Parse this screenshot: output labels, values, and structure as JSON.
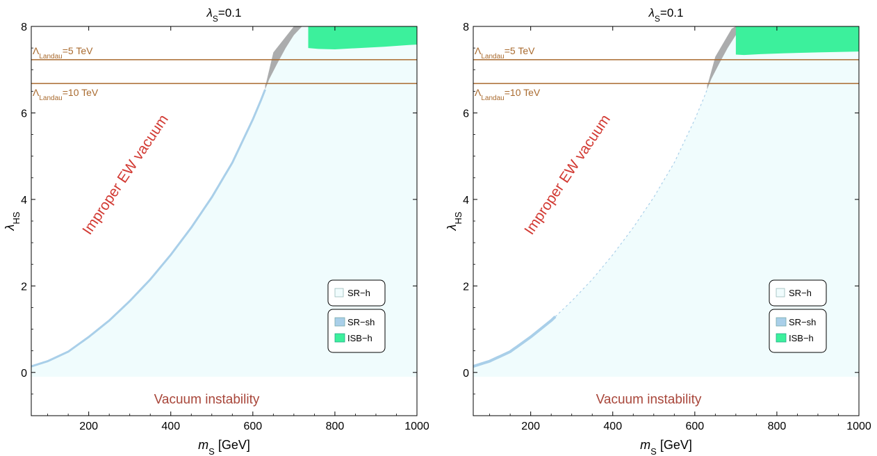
{
  "chart_data": [
    {
      "type": "region-plot",
      "title": "λ_S=0.1",
      "title_parts": {
        "sym": "λ",
        "sub": "S",
        "rest": "=0.1"
      },
      "xlabel": "m_S [GeV]",
      "xlabel_parts": {
        "sym": "m",
        "sub": "S",
        "rest": " [GeV]"
      },
      "ylabel": "λ_HS",
      "ylabel_parts": {
        "sym": "λ",
        "sub": "HS"
      },
      "xlim": [
        60,
        1000
      ],
      "ylim": [
        -1,
        8
      ],
      "xticks": [
        200,
        400,
        600,
        800,
        1000
      ],
      "yticks": [
        0,
        2,
        4,
        6,
        8
      ],
      "annotations": {
        "improper": "Improper EW vacuum",
        "instability": "Vacuum instability",
        "landau5": {
          "sym": "Λ",
          "sub": "Landau",
          "rest": "=5 TeV",
          "y": 7.23
        },
        "landau10": {
          "sym": "Λ",
          "sub": "Landau",
          "rest": "=10 TeV",
          "y": 6.68
        }
      },
      "legend": {
        "items": [
          "SR−h",
          "SR−sh",
          "ISB−h"
        ],
        "placement": "lower-right"
      },
      "boundary": {
        "x": [
          60,
          100,
          150,
          200,
          250,
          300,
          350,
          400,
          450,
          500,
          550,
          600,
          620,
          640,
          660,
          680,
          700,
          720
        ],
        "y": [
          0.14,
          0.26,
          0.48,
          0.82,
          1.2,
          1.65,
          2.15,
          2.72,
          3.35,
          4.05,
          4.85,
          5.85,
          6.3,
          6.78,
          7.15,
          7.5,
          7.8,
          8.0
        ]
      },
      "sh_band": {
        "x_range": [
          60,
          630
        ]
      },
      "gray_region": {
        "x": [
          630,
          632,
          650,
          700,
          720,
          760
        ],
        "y": [
          6.65,
          6.68,
          7.4,
          8.0,
          8.0,
          8.0
        ]
      },
      "isb_region": {
        "x": [
          735,
          760,
          800,
          860,
          920,
          980,
          1000
        ],
        "y_low": [
          7.5,
          7.48,
          7.47,
          7.5,
          7.53,
          7.57,
          7.58
        ],
        "y_high": 8.0
      },
      "stable_floor": -0.1,
      "colors": {
        "sr_h": "#f0fcfd",
        "sr_sh": "#a9cfe9",
        "isb_h": "#3cf09c",
        "gray": "#a6a8a9",
        "landau": "#a96a2e",
        "improper": "#d23a33",
        "instability": "#a8463a"
      }
    },
    {
      "type": "region-plot",
      "title": "λ_S=0.1",
      "title_parts": {
        "sym": "λ",
        "sub": "S",
        "rest": "=0.1"
      },
      "xlabel": "m_S [GeV]",
      "xlabel_parts": {
        "sym": "m",
        "sub": "S",
        "rest": " [GeV]"
      },
      "ylabel": "λ_HS",
      "ylabel_parts": {
        "sym": "λ",
        "sub": "HS"
      },
      "xlim": [
        60,
        1000
      ],
      "ylim": [
        -1,
        8
      ],
      "xticks": [
        200,
        400,
        600,
        800,
        1000
      ],
      "yticks": [
        0,
        2,
        4,
        6,
        8
      ],
      "annotations": {
        "improper": "Improper EW vacuum",
        "instability": "Vacuum instability",
        "landau5": {
          "sym": "Λ",
          "sub": "Landau",
          "rest": "=5 TeV",
          "y": 7.23
        },
        "landau10": {
          "sym": "Λ",
          "sub": "Landau",
          "rest": "=10 TeV",
          "y": 6.68
        }
      },
      "legend": {
        "items": [
          "SR−h",
          "SR−sh",
          "ISB−h"
        ],
        "placement": "lower-right"
      },
      "boundary": {
        "x": [
          60,
          100,
          150,
          200,
          250,
          300,
          350,
          400,
          450,
          500,
          550,
          600,
          620,
          640,
          660,
          680,
          700,
          720
        ],
        "y": [
          0.14,
          0.26,
          0.48,
          0.82,
          1.2,
          1.65,
          2.15,
          2.72,
          3.35,
          4.05,
          4.85,
          5.85,
          6.3,
          6.78,
          7.15,
          7.5,
          7.8,
          8.0
        ]
      },
      "sh_band": {
        "x_range": [
          60,
          260
        ]
      },
      "gray_region": {
        "x": [
          630,
          632,
          650,
          690,
          700,
          720
        ],
        "y": [
          6.65,
          6.68,
          7.3,
          7.95,
          8.0,
          8.0
        ]
      },
      "isb_region": {
        "x": [
          700,
          720,
          760,
          820,
          900,
          1000
        ],
        "y_low": [
          7.35,
          7.34,
          7.36,
          7.38,
          7.4,
          7.42
        ],
        "y_high": 8.0
      },
      "stable_floor": -0.1,
      "colors": {
        "sr_h": "#f0fcfd",
        "sr_sh": "#a9cfe9",
        "isb_h": "#3cf09c",
        "gray": "#a6a8a9",
        "landau": "#a96a2e",
        "improper": "#d23a33",
        "instability": "#a8463a"
      }
    }
  ]
}
